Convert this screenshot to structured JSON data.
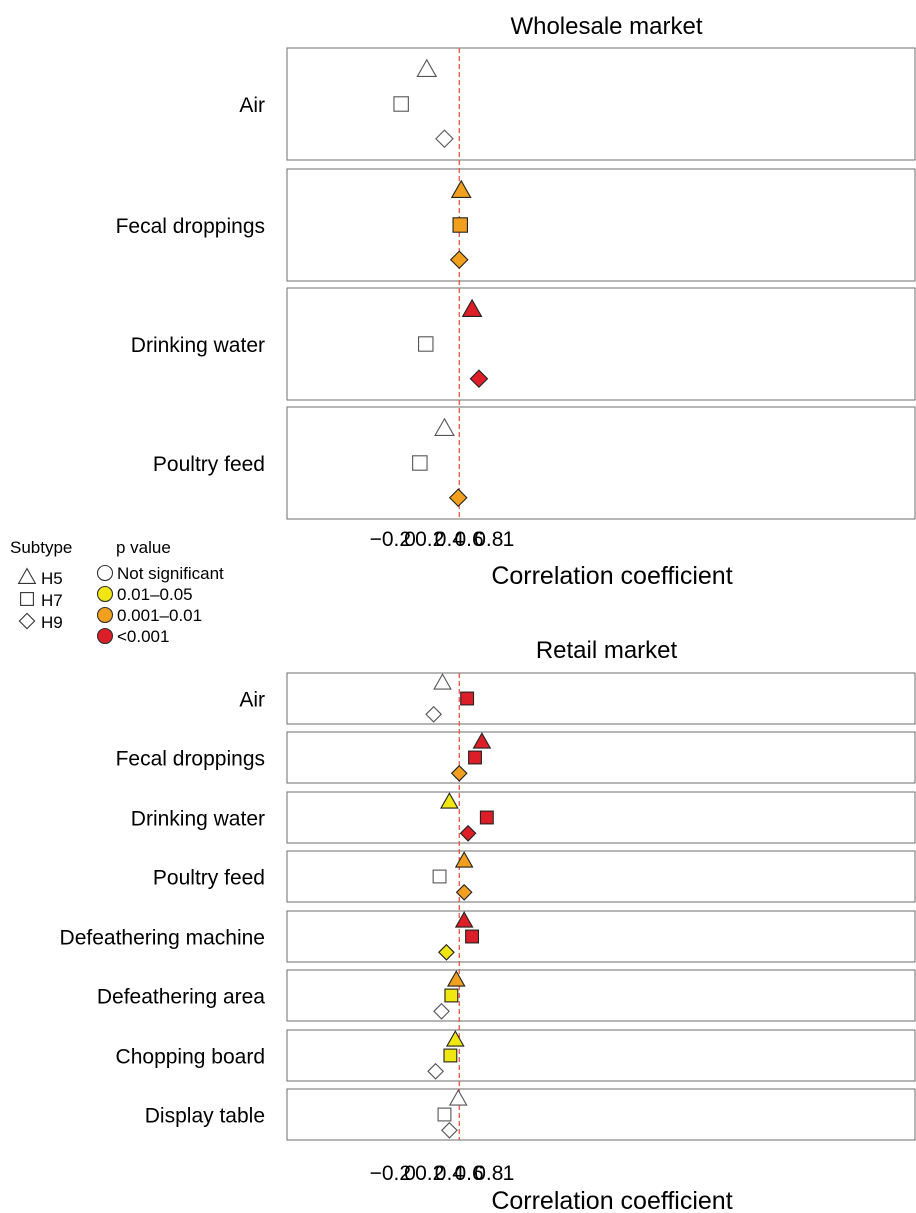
{
  "chart_data": [
    {
      "type": "scatter",
      "title": "Wholesale market",
      "xlabel": "Correlation coefficient",
      "xlim": [
        -0.25,
        1.01
      ],
      "xticks": [
        {
          "value": -0.2,
          "label": "−0.2"
        },
        {
          "value": 0,
          "label": "0"
        },
        {
          "value": 0.2,
          "label": "0.2"
        },
        {
          "value": 0.4,
          "label": "0.4"
        },
        {
          "value": 0.6,
          "label": "0.6"
        },
        {
          "value": 0.8,
          "label": "0.8"
        },
        {
          "value": 1,
          "label": "1"
        }
      ],
      "reference_line": 0.5,
      "categories": [
        "Air",
        "Fecal droppings",
        "Drinking water",
        "Poultry feed"
      ],
      "points": [
        {
          "category": "Air",
          "subtype": "H5",
          "x": 0.17,
          "p": "ns"
        },
        {
          "category": "Air",
          "subtype": "H7",
          "x": -0.09,
          "p": "ns"
        },
        {
          "category": "Air",
          "subtype": "H9",
          "x": 0.35,
          "p": "ns"
        },
        {
          "category": "Fecal droppings",
          "subtype": "H5",
          "x": 0.52,
          "p": "p01"
        },
        {
          "category": "Fecal droppings",
          "subtype": "H7",
          "x": 0.51,
          "p": "p01"
        },
        {
          "category": "Fecal droppings",
          "subtype": "H9",
          "x": 0.5,
          "p": "p01"
        },
        {
          "category": "Drinking water",
          "subtype": "H5",
          "x": 0.63,
          "p": "p001"
        },
        {
          "category": "Drinking water",
          "subtype": "H7",
          "x": 0.16,
          "p": "ns"
        },
        {
          "category": "Drinking water",
          "subtype": "H9",
          "x": 0.7,
          "p": "p001"
        },
        {
          "category": "Poultry feed",
          "subtype": "H5",
          "x": 0.35,
          "p": "ns"
        },
        {
          "category": "Poultry feed",
          "subtype": "H7",
          "x": 0.1,
          "p": "ns"
        },
        {
          "category": "Poultry feed",
          "subtype": "H9",
          "x": 0.49,
          "p": "p01"
        }
      ]
    },
    {
      "type": "scatter",
      "title": "Retail market",
      "xlabel": "Correlation coefficient",
      "xlim": [
        -0.25,
        1.01
      ],
      "xticks": [
        {
          "value": -0.2,
          "label": "−0.2"
        },
        {
          "value": 0,
          "label": "0"
        },
        {
          "value": 0.2,
          "label": "0.2"
        },
        {
          "value": 0.4,
          "label": "0.4"
        },
        {
          "value": 0.6,
          "label": "0.6"
        },
        {
          "value": 0.8,
          "label": "0.8"
        },
        {
          "value": 1,
          "label": "1"
        }
      ],
      "reference_line": 0.5,
      "categories": [
        "Air",
        "Fecal droppings",
        "Drinking water",
        "Poultry feed",
        "Defeathering machine",
        "Defeathering area",
        "Chopping board",
        "Display table"
      ],
      "points": [
        {
          "category": "Air",
          "subtype": "H5",
          "x": 0.33,
          "p": "ns"
        },
        {
          "category": "Air",
          "subtype": "H7",
          "x": 0.58,
          "p": "p001"
        },
        {
          "category": "Air",
          "subtype": "H9",
          "x": 0.24,
          "p": "ns"
        },
        {
          "category": "Fecal droppings",
          "subtype": "H5",
          "x": 0.73,
          "p": "p001"
        },
        {
          "category": "Fecal droppings",
          "subtype": "H7",
          "x": 0.66,
          "p": "p001"
        },
        {
          "category": "Fecal droppings",
          "subtype": "H9",
          "x": 0.5,
          "p": "p01"
        },
        {
          "category": "Drinking water",
          "subtype": "H5",
          "x": 0.4,
          "p": "p05"
        },
        {
          "category": "Drinking water",
          "subtype": "H7",
          "x": 0.78,
          "p": "p001"
        },
        {
          "category": "Drinking water",
          "subtype": "H9",
          "x": 0.59,
          "p": "p001"
        },
        {
          "category": "Poultry feed",
          "subtype": "H5",
          "x": 0.55,
          "p": "p01"
        },
        {
          "category": "Poultry feed",
          "subtype": "H7",
          "x": 0.3,
          "p": "ns"
        },
        {
          "category": "Poultry feed",
          "subtype": "H9",
          "x": 0.55,
          "p": "p01"
        },
        {
          "category": "Defeathering machine",
          "subtype": "H5",
          "x": 0.55,
          "p": "p001"
        },
        {
          "category": "Defeathering machine",
          "subtype": "H7",
          "x": 0.63,
          "p": "p001"
        },
        {
          "category": "Defeathering machine",
          "subtype": "H9",
          "x": 0.37,
          "p": "p05"
        },
        {
          "category": "Defeathering area",
          "subtype": "H5",
          "x": 0.47,
          "p": "p01"
        },
        {
          "category": "Defeathering area",
          "subtype": "H7",
          "x": 0.42,
          "p": "p05"
        },
        {
          "category": "Defeathering area",
          "subtype": "H9",
          "x": 0.32,
          "p": "ns"
        },
        {
          "category": "Chopping board",
          "subtype": "H5",
          "x": 0.46,
          "p": "p05"
        },
        {
          "category": "Chopping board",
          "subtype": "H7",
          "x": 0.41,
          "p": "p05"
        },
        {
          "category": "Chopping board",
          "subtype": "H9",
          "x": 0.26,
          "p": "ns"
        },
        {
          "category": "Display table",
          "subtype": "H5",
          "x": 0.49,
          "p": "ns"
        },
        {
          "category": "Display table",
          "subtype": "H7",
          "x": 0.35,
          "p": "ns"
        },
        {
          "category": "Display table",
          "subtype": "H9",
          "x": 0.4,
          "p": "ns"
        }
      ]
    }
  ],
  "legend": {
    "subtype_title": "Subtype",
    "subtypes": [
      {
        "key": "H5",
        "label": "H5",
        "shape": "triangle"
      },
      {
        "key": "H7",
        "label": "H7",
        "shape": "square"
      },
      {
        "key": "H9",
        "label": "H9",
        "shape": "diamond"
      }
    ],
    "pvalue_title": "p value",
    "pvalues": [
      {
        "key": "ns",
        "label": "Not significant",
        "color": "#ffffff"
      },
      {
        "key": "p05",
        "label": "0.01–0.05",
        "color": "#f0e612"
      },
      {
        "key": "p01",
        "label": "0.001–0.01",
        "color": "#f0a01e"
      },
      {
        "key": "p001",
        "label": "<0.001",
        "color": "#dc1e28"
      }
    ]
  },
  "colors": {
    "reference_line": "#e8483c",
    "not_significant_stroke": "#555555",
    "significant_stroke": "#222222"
  }
}
